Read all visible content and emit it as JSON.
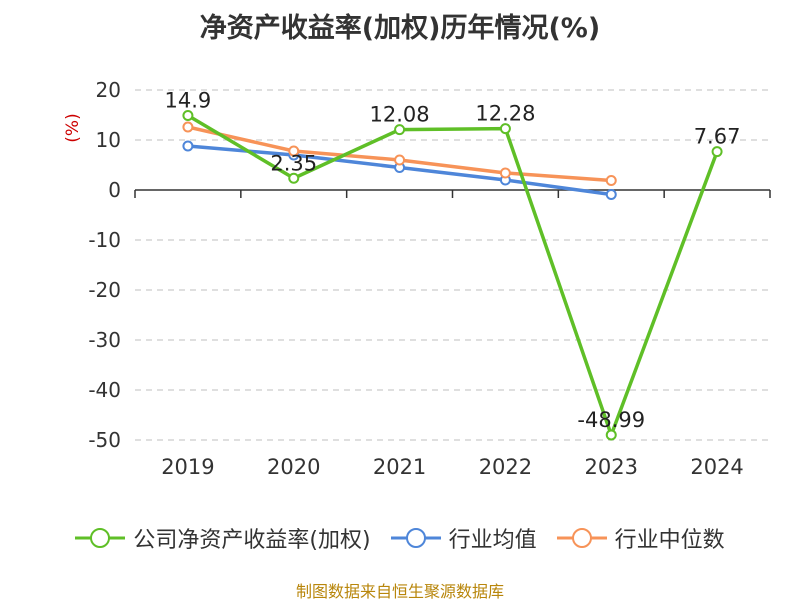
{
  "chart_data": {
    "type": "line",
    "title": "净资产收益率(加权)历年情况(%)",
    "ylabel": "(%)",
    "xlabel": "",
    "categories": [
      "2019",
      "2020",
      "2021",
      "2022",
      "2023",
      "2024"
    ],
    "ylim": [
      -50,
      20
    ],
    "yticks": [
      20,
      10,
      0,
      -10,
      -20,
      -30,
      -40,
      -50
    ],
    "grid": true,
    "legend_position": "bottom",
    "series": [
      {
        "name": "公司净资产收益率(加权)",
        "color": "#5fbf27",
        "values": [
          14.9,
          2.35,
          12.08,
          12.28,
          -48.99,
          7.67
        ],
        "labels": [
          "14.9",
          "2.35",
          "12.08",
          "12.28",
          "-48.99",
          "7.67"
        ]
      },
      {
        "name": "行业均值",
        "color": "#4e86d9",
        "values": [
          8.8,
          7.0,
          4.5,
          2.0,
          -0.9,
          null
        ]
      },
      {
        "name": "行业中位数",
        "color": "#f79358",
        "values": [
          12.6,
          7.8,
          6.0,
          3.4,
          1.9,
          null
        ]
      }
    ]
  },
  "source": "制图数据来自恒生聚源数据库"
}
